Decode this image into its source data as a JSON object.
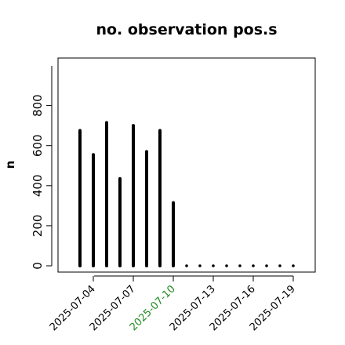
{
  "chart_data": {
    "type": "bar",
    "title": "no. observation pos.s",
    "xlabel": "",
    "ylabel": "n",
    "ylim": [
      0,
      960
    ],
    "yticks": [
      0,
      200,
      400,
      600,
      800
    ],
    "x": [
      "2025-07-03",
      "2025-07-04",
      "2025-07-05",
      "2025-07-06",
      "2025-07-07",
      "2025-07-08",
      "2025-07-09",
      "2025-07-10",
      "2025-07-11",
      "2025-07-12",
      "2025-07-13",
      "2025-07-14",
      "2025-07-15",
      "2025-07-16",
      "2025-07-17",
      "2025-07-18",
      "2025-07-19"
    ],
    "values": [
      675,
      555,
      715,
      435,
      700,
      570,
      675,
      315,
      0,
      0,
      0,
      0,
      0,
      0,
      0,
      0,
      0
    ],
    "xtick_labels": [
      "2025-07-04",
      "2025-07-07",
      "2025-07-10",
      "2025-07-13",
      "2025-07-16",
      "2025-07-19"
    ],
    "highlighted_tick": "2025-07-10",
    "colors": {
      "bars": "#000000",
      "highlight_tick": "#228b22",
      "axis": "#000000"
    },
    "grid": false,
    "legend": "none"
  }
}
